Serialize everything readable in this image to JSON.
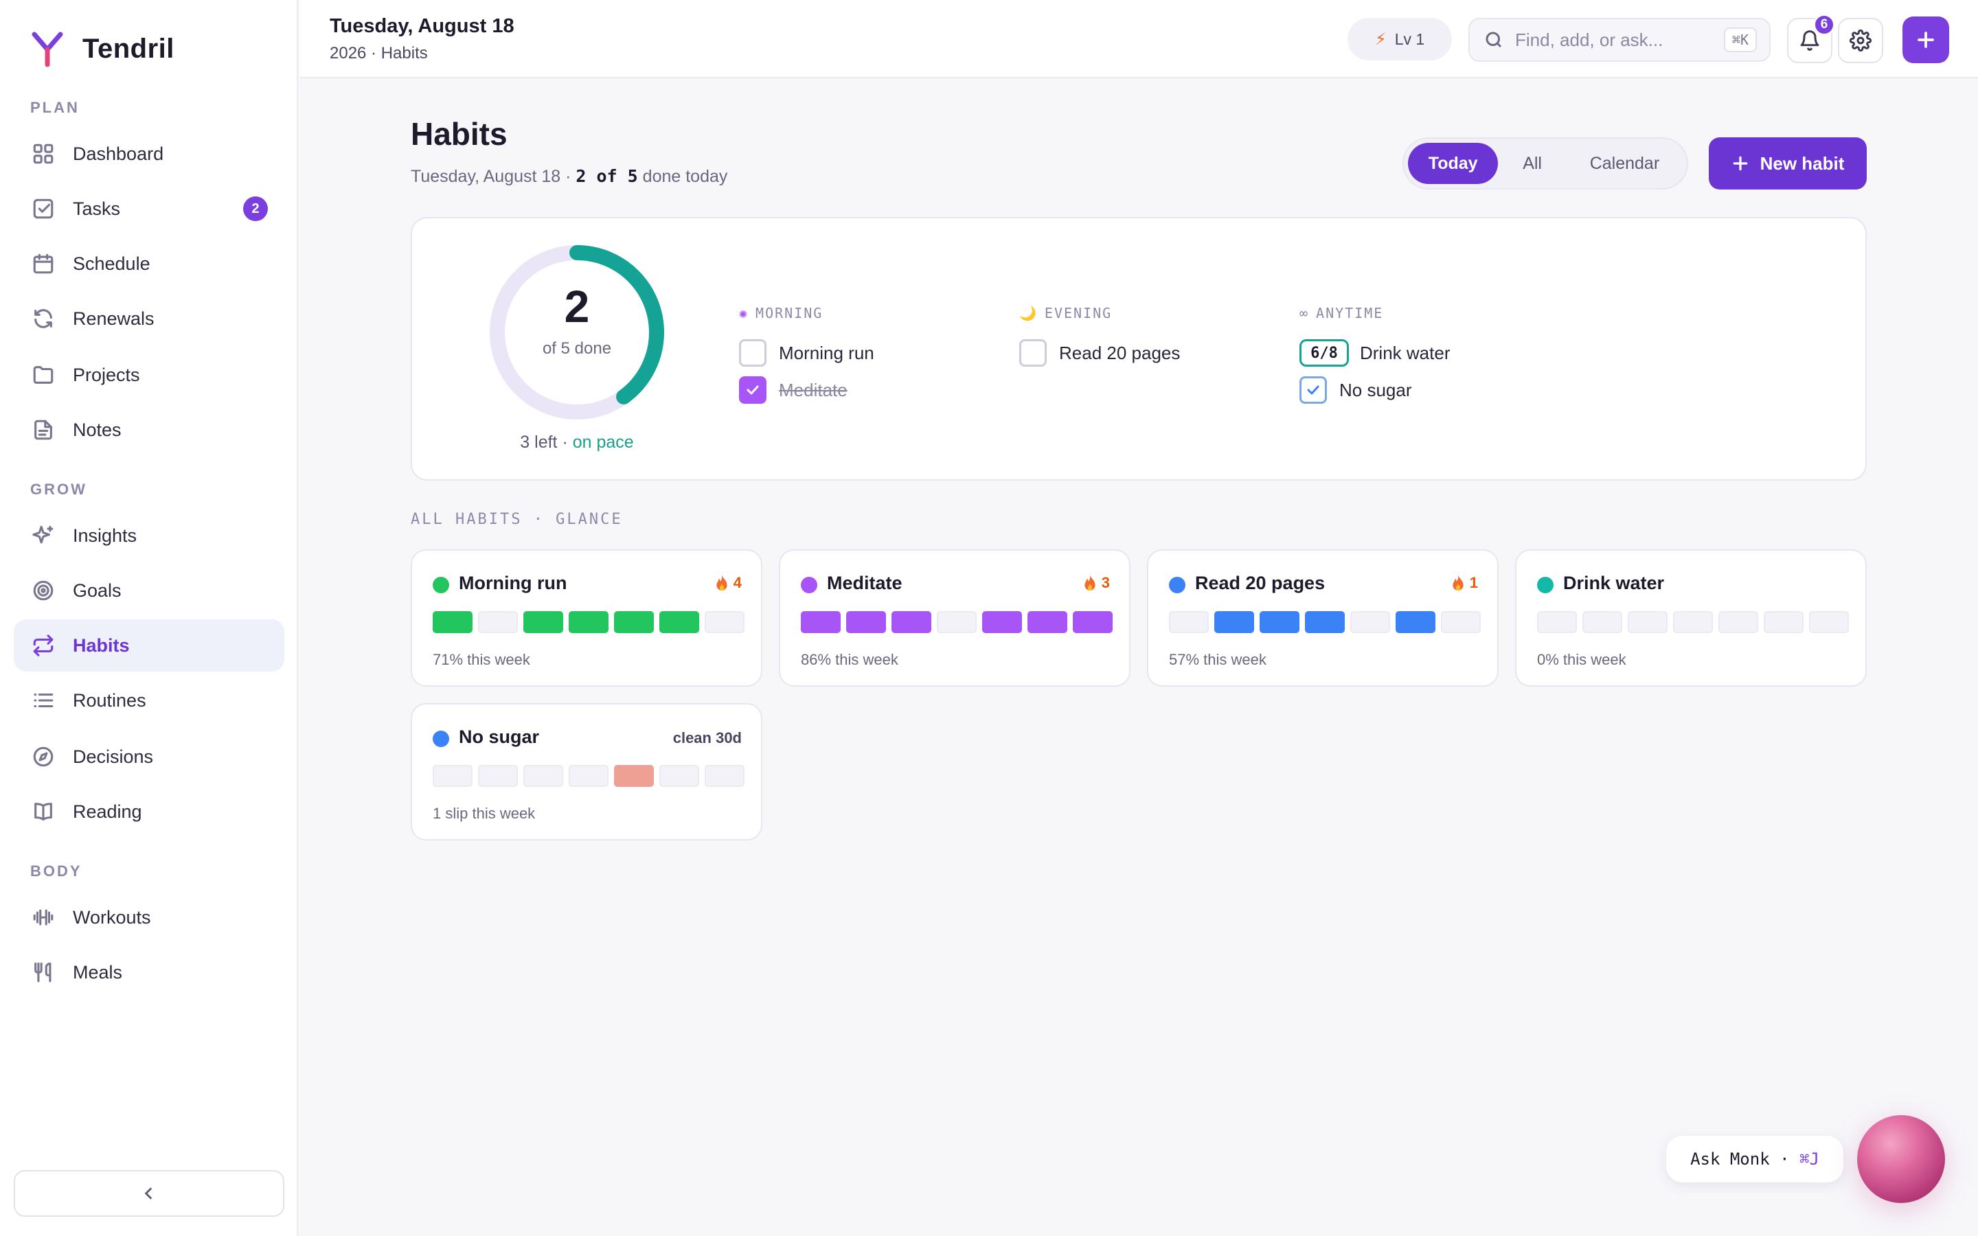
{
  "app": {
    "name": "Tendril",
    "accent": "#7b3fe0"
  },
  "sidebar": {
    "sections": [
      {
        "label": "PLAN"
      },
      {
        "label": "GROW"
      },
      {
        "label": "BODY"
      }
    ],
    "items": [
      {
        "label": "Dashboard",
        "icon": "grid-icon"
      },
      {
        "label": "Tasks",
        "icon": "checkbox-icon",
        "badge": "2"
      },
      {
        "label": "Schedule",
        "icon": "calendar-icon"
      },
      {
        "label": "Renewals",
        "icon": "refresh-icon"
      },
      {
        "label": "Projects",
        "icon": "folder-icon"
      },
      {
        "label": "Notes",
        "icon": "document-icon"
      },
      {
        "label": "Insights",
        "icon": "sparkle-icon"
      },
      {
        "label": "Goals",
        "icon": "target-icon"
      },
      {
        "label": "Habits",
        "icon": "repeat-icon",
        "active": true
      },
      {
        "label": "Routines",
        "icon": "list-icon"
      },
      {
        "label": "Decisions",
        "icon": "compass-icon"
      },
      {
        "label": "Reading",
        "icon": "book-icon"
      },
      {
        "label": "Workouts",
        "icon": "dumbbell-icon"
      },
      {
        "label": "Meals",
        "icon": "utensils-icon"
      }
    ]
  },
  "header": {
    "date": "Tuesday, August 18",
    "subtitle": "2026 · Habits",
    "level": "Lv 1",
    "search_placeholder": "Find, add, or ask...",
    "search_shortcut": "⌘K",
    "notifications_count": "6"
  },
  "main": {
    "title": "Habits",
    "subtitle_date": "Tuesday, August 18 · ",
    "subtitle_count": "2 of 5",
    "subtitle_suffix": " done today",
    "tabs": [
      {
        "label": "Today",
        "active": true
      },
      {
        "label": "All"
      },
      {
        "label": "Calendar"
      }
    ],
    "new_habit_label": "New habit"
  },
  "summary": {
    "done": "2",
    "done_label": "of 5 done",
    "progress_fraction": 0.4,
    "footer_left": "3 left · ",
    "footer_status": "on pace",
    "groups": [
      {
        "icon": "✺",
        "label": "MORNING",
        "habits": [
          {
            "name": "Morning run",
            "checked": false
          },
          {
            "name": "Meditate",
            "checked": true
          }
        ]
      },
      {
        "icon": "🌙",
        "label": "EVENING",
        "habits": [
          {
            "name": "Read 20 pages",
            "checked": false
          }
        ]
      },
      {
        "icon": "∞",
        "label": "ANYTIME",
        "habits": [
          {
            "name": "Drink water",
            "counter": "6/8"
          },
          {
            "name": "No sugar",
            "checked": true
          }
        ]
      }
    ]
  },
  "glance": {
    "label": "ALL HABITS · GLANCE",
    "cards": [
      {
        "name": "Morning run",
        "color": "#22c55e",
        "streak": "4",
        "week": [
          1,
          0,
          1,
          1,
          1,
          1,
          0
        ],
        "footer": "71% this week"
      },
      {
        "name": "Meditate",
        "color": "#a855f7",
        "streak": "3",
        "week": [
          1,
          1,
          1,
          0,
          1,
          1,
          1
        ],
        "footer": "86% this week"
      },
      {
        "name": "Read 20 pages",
        "color": "#3b82f6",
        "streak": "1",
        "week": [
          0,
          1,
          1,
          1,
          0,
          1,
          0
        ],
        "footer": "57% this week"
      },
      {
        "name": "Drink water",
        "color": "#14b8a6",
        "streak": "",
        "week": [
          0,
          0,
          0,
          0,
          0,
          0,
          0
        ],
        "footer": "0% this week"
      },
      {
        "name": "No sugar",
        "color": "#3b82f6",
        "meta": "clean 30d",
        "week": [
          0,
          0,
          0,
          0,
          "slip",
          0,
          0
        ],
        "footer": "1 slip this week"
      }
    ]
  },
  "assistant": {
    "label": "Ask Monk · ",
    "shortcut": "⌘J"
  }
}
